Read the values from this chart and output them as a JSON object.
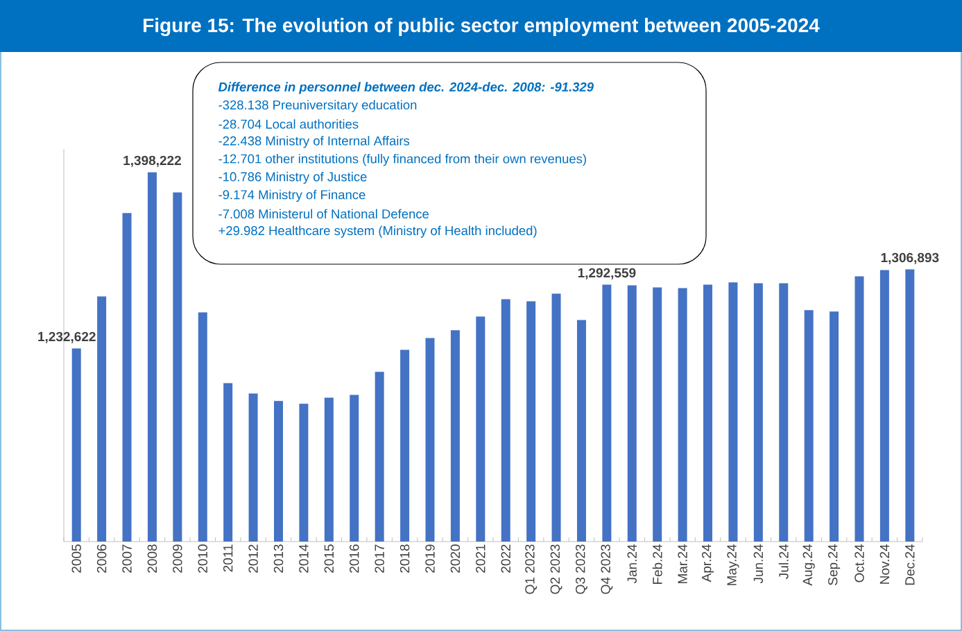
{
  "chart_data": {
    "type": "bar",
    "title": "Figure 15: The evolution of public sector employment between 2005-2024",
    "categories": [
      "2005",
      "2006",
      "2007",
      "2008",
      "2009",
      "2010",
      "2011",
      "2012",
      "2013",
      "2014",
      "2015",
      "2016",
      "2017",
      "2018",
      "2019",
      "2020",
      "2021",
      "2022",
      "Q1 2023",
      "Q2 2023",
      "Q3 2023",
      "Q4 2023",
      "Jan.24",
      "Feb.24",
      "Mar.24",
      "Apr.24",
      "May.24",
      "Jun.24",
      "Jul.24",
      "Aug.24",
      "Sep.24",
      "Oct.24",
      "Nov.24",
      "Dec.24"
    ],
    "values": [
      1232622,
      1281500,
      1359800,
      1398222,
      1379300,
      1266500,
      1200000,
      1190200,
      1183100,
      1180500,
      1186300,
      1188900,
      1210500,
      1231300,
      1242400,
      1249600,
      1262600,
      1278900,
      1276900,
      1284100,
      1259300,
      1292559,
      1291900,
      1290000,
      1289300,
      1292600,
      1294600,
      1293900,
      1293900,
      1268500,
      1267200,
      1300400,
      1306200,
      1306893
    ],
    "value_labels": [
      "1,232,622",
      null,
      null,
      "1,398,222",
      null,
      null,
      null,
      null,
      null,
      null,
      null,
      null,
      null,
      null,
      null,
      null,
      null,
      null,
      null,
      null,
      null,
      "1,292,559",
      null,
      null,
      null,
      null,
      null,
      null,
      null,
      null,
      null,
      null,
      null,
      "1,306,893"
    ],
    "color": "#4472c4",
    "ylim": [
      1051000,
      1420000
    ],
    "annotations": [
      "Difference in personnel between dec. 2024-dec. 2008: -91.329",
      "-328.138 Preuniversitary education",
      "-28.704 Local authorities",
      "-22.438 Ministry of Internal Affairs",
      "-12.701 other institutions (fully financed from their own revenues)",
      "-10.786 Ministry of Justice",
      "-9.174 Ministry of Finance",
      "-7.008 Ministerul of National Defence",
      "+29.982 Healthcare system (Ministry of Health included)"
    ]
  }
}
